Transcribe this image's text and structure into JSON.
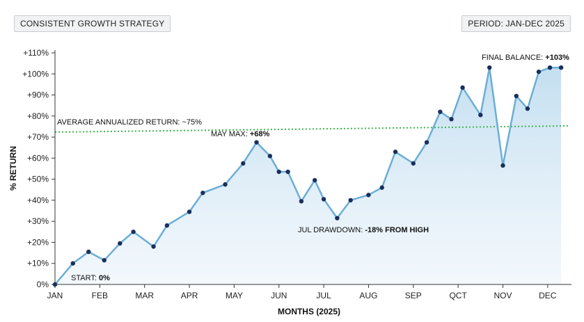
{
  "header": {
    "title": "CONSISTENT GROWTH STRATEGY",
    "period": "PERIOD: JAN-DEC 2025"
  },
  "chart_data": {
    "type": "line",
    "xlabel": "MONTHS (2025)",
    "ylabel": "% RETURN",
    "ylim": [
      0,
      110
    ],
    "yticks": [
      0,
      10,
      20,
      30,
      40,
      50,
      60,
      70,
      80,
      90,
      100,
      110
    ],
    "ytick_labels": [
      "0%",
      "+10%",
      "+20%",
      "+30%",
      "+40%",
      "+50%",
      "+60%",
      "+70%",
      "+80%",
      "+90%",
      "+100%",
      "+110%"
    ],
    "xlim": [
      0,
      11.5
    ],
    "xticks": [
      0,
      1,
      2,
      3,
      4,
      5,
      6,
      7,
      8,
      9,
      10,
      11
    ],
    "xtick_labels": [
      "JAN",
      "FEB",
      "MAR",
      "APR",
      "MAY",
      "JUN",
      "JUL",
      "AUG",
      "SEP",
      "QCT",
      "NOV",
      "DEC"
    ],
    "series": [
      {
        "color": "#6aaed6",
        "marker_color": "#1a2f5c",
        "x": [
          0,
          0.4,
          0.75,
          1.1,
          1.45,
          1.75,
          2.2,
          2.5,
          3.0,
          3.3,
          3.8,
          4.2,
          4.5,
          4.8,
          5.0,
          5.2,
          5.5,
          5.8,
          6.0,
          6.3,
          6.6,
          7.0,
          7.3,
          7.6,
          8.0,
          8.3,
          8.6,
          8.85,
          9.1,
          9.5,
          9.7,
          10.0,
          10.3,
          10.55,
          10.8,
          11.05,
          11.3
        ],
        "y": [
          0,
          10,
          15.5,
          11.5,
          19.5,
          25,
          18,
          28,
          34.5,
          43.5,
          47.5,
          57.5,
          67.5,
          61,
          53.5,
          53.5,
          39.5,
          49.5,
          40.5,
          31.5,
          40,
          42.5,
          46,
          63,
          57.5,
          67.5,
          82,
          78.5,
          93.5,
          80.5,
          103,
          56.5,
          89.5,
          83.5,
          101,
          103,
          103
        ]
      }
    ],
    "avg_line": {
      "value": 75,
      "color": "#3cb44b",
      "label": "AVERAGE ANNUALIZED RETURN: ~75%"
    },
    "annotations": [
      {
        "prefix": "START:",
        "value": "0%"
      },
      {
        "prefix": "MAY MAX:",
        "value": "+68%"
      },
      {
        "prefix": "JUL DRAWDOWN:",
        "value": "-18% FROM HIGH"
      },
      {
        "prefix": "FINAL BALANCE:",
        "value": "+103%"
      }
    ],
    "grid": false
  }
}
